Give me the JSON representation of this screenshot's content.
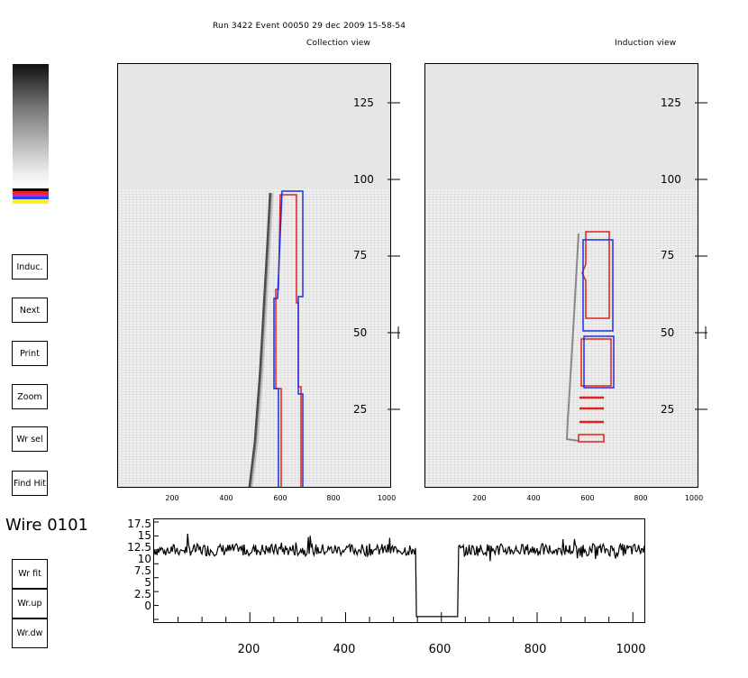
{
  "header": {
    "run_line": "Run 3422  Event 00050  29 dec 2009  15-58-54",
    "collection_title": "Collection view",
    "induction_title": "Induction view"
  },
  "colors": {
    "track_red": "#e02020",
    "track_blue": "#2030e0",
    "panel_top": "#e6e6e6",
    "panel_bg": "#eeeeee"
  },
  "buttons": [
    {
      "key": "induc",
      "label": "Induc."
    },
    {
      "key": "next",
      "label": "Next"
    },
    {
      "key": "print",
      "label": "Print"
    },
    {
      "key": "zoom",
      "label": "Zoom"
    },
    {
      "key": "wrsel",
      "label": "Wr sel"
    },
    {
      "key": "findhit",
      "label": "Find Hit"
    },
    {
      "key": "wrfit",
      "label": "Wr fit"
    },
    {
      "key": "wrup",
      "label": "Wr.up"
    },
    {
      "key": "wrdw",
      "label": "Wr.dw"
    }
  ],
  "wire_label": "Wire 0101",
  "panels": {
    "y_ticks": [
      "125",
      "100",
      "75",
      "50",
      "25"
    ],
    "x_ticks": [
      "200",
      "400",
      "600",
      "800",
      "1000"
    ]
  },
  "waveform": {
    "y_ticks": [
      "17.5",
      "15",
      "12.5",
      "10",
      "7.5",
      "5",
      "2.5",
      "0"
    ],
    "x_ticks": [
      "200",
      "400",
      "600",
      "800",
      "1000"
    ]
  },
  "chart_data": {
    "type": "line",
    "title": "Wire 0101",
    "xlabel": "",
    "ylabel": "",
    "xlim": [
      0,
      1024
    ],
    "ylim": [
      0,
      17.5
    ],
    "series": [
      {
        "values_summary": "baseline ~12.5 with noise; drop to ~0.5 between x=548 and x=635",
        "x": [
          0,
          548,
          548,
          635,
          635,
          1024
        ],
        "y": [
          12.5,
          12.5,
          0.5,
          0.5,
          12.5,
          12.5
        ]
      }
    ]
  }
}
